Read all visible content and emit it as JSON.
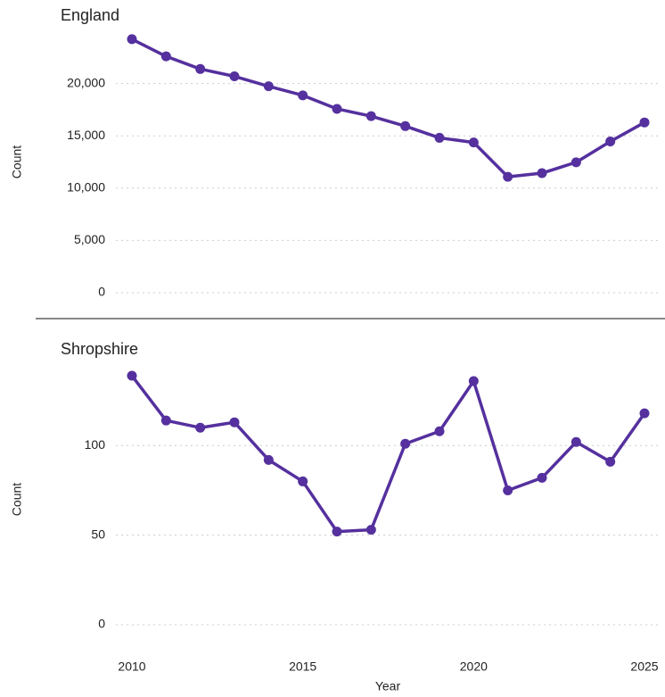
{
  "chart_data": [
    {
      "type": "line",
      "title": "England",
      "ylabel": "Count",
      "color": "#55309e",
      "grid": true,
      "x": [
        2010,
        2011,
        2012,
        2013,
        2014,
        2015,
        2016,
        2017,
        2018,
        2019,
        2020,
        2021,
        2022,
        2023,
        2024,
        2025
      ],
      "values": [
        24240,
        22600,
        21390,
        20690,
        19740,
        18870,
        17580,
        16880,
        15930,
        14810,
        14370,
        11080,
        11430,
        12470,
        14460,
        16280
      ],
      "xlim": [
        2010,
        2025
      ],
      "ylim": [
        0,
        25000
      ],
      "yticks": [
        0,
        {
          "value": 5000,
          "label": "5,000"
        },
        {
          "value": 10000,
          "label": "10,000"
        },
        {
          "value": 15000,
          "label": "15,000"
        },
        {
          "value": 20000,
          "label": "20,000"
        }
      ]
    },
    {
      "type": "line",
      "title": "Shropshire",
      "ylabel": "Count",
      "xlabel": "Year",
      "color": "#55309e",
      "grid": true,
      "x": [
        2010,
        2011,
        2012,
        2013,
        2014,
        2015,
        2016,
        2017,
        2018,
        2019,
        2020,
        2021,
        2022,
        2023,
        2024,
        2025
      ],
      "values": [
        139,
        114,
        110,
        113,
        92,
        80,
        52,
        53,
        101,
        108,
        136,
        75,
        82,
        102,
        91,
        118
      ],
      "xlim": [
        2010,
        2025
      ],
      "xticks": [
        2010,
        2015,
        2020,
        2025
      ],
      "ylim": [
        0,
        140
      ],
      "yticks": [
        0,
        50,
        100
      ]
    }
  ]
}
